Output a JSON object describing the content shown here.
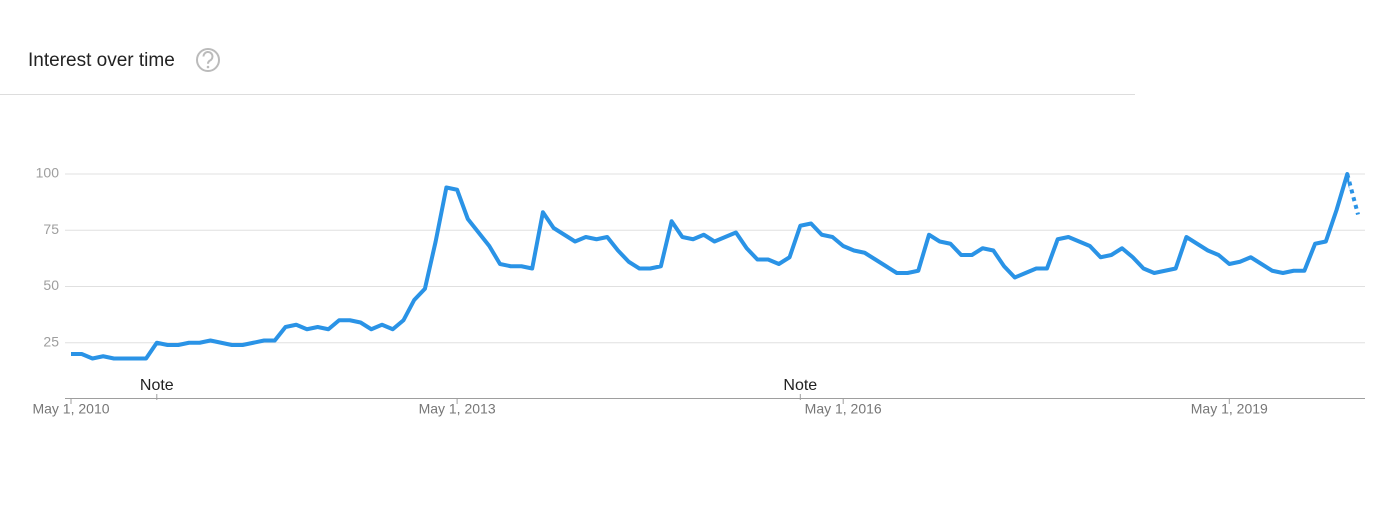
{
  "chart_data": {
    "type": "line",
    "title": "Interest over time",
    "x": [
      "2010-05-01",
      "2010-06-01",
      "2010-07-01",
      "2010-08-01",
      "2010-09-01",
      "2010-10-01",
      "2010-11-01",
      "2010-12-01",
      "2011-01-01",
      "2011-02-01",
      "2011-03-01",
      "2011-04-01",
      "2011-05-01",
      "2011-06-01",
      "2011-07-01",
      "2011-08-01",
      "2011-09-01",
      "2011-10-01",
      "2011-11-01",
      "2011-12-01",
      "2012-01-01",
      "2012-02-01",
      "2012-03-01",
      "2012-04-01",
      "2012-05-01",
      "2012-06-01",
      "2012-07-01",
      "2012-08-01",
      "2012-09-01",
      "2012-10-01",
      "2012-11-01",
      "2012-12-01",
      "2013-01-01",
      "2013-02-01",
      "2013-03-01",
      "2013-04-01",
      "2013-05-01",
      "2013-06-01",
      "2013-07-01",
      "2013-08-01",
      "2013-09-01",
      "2013-10-01",
      "2013-11-01",
      "2013-12-01",
      "2014-01-01",
      "2014-02-01",
      "2014-03-01",
      "2014-04-01",
      "2014-05-01",
      "2014-06-01",
      "2014-07-01",
      "2014-08-01",
      "2014-09-01",
      "2014-10-01",
      "2014-11-01",
      "2014-12-01",
      "2015-01-01",
      "2015-02-01",
      "2015-03-01",
      "2015-04-01",
      "2015-05-01",
      "2015-06-01",
      "2015-07-01",
      "2015-08-01",
      "2015-09-01",
      "2015-10-01",
      "2015-11-01",
      "2015-12-01",
      "2016-01-01",
      "2016-02-01",
      "2016-03-01",
      "2016-04-01",
      "2016-05-01",
      "2016-06-01",
      "2016-07-01",
      "2016-08-01",
      "2016-09-01",
      "2016-10-01",
      "2016-11-01",
      "2016-12-01",
      "2017-01-01",
      "2017-02-01",
      "2017-03-01",
      "2017-04-01",
      "2017-05-01",
      "2017-06-01",
      "2017-07-01",
      "2017-08-01",
      "2017-09-01",
      "2017-10-01",
      "2017-11-01",
      "2017-12-01",
      "2018-01-01",
      "2018-02-01",
      "2018-03-01",
      "2018-04-01",
      "2018-05-01",
      "2018-06-01",
      "2018-07-01",
      "2018-08-01",
      "2018-09-01",
      "2018-10-01",
      "2018-11-01",
      "2018-12-01",
      "2019-01-01",
      "2019-02-01",
      "2019-03-01",
      "2019-04-01",
      "2019-05-01",
      "2019-06-01",
      "2019-07-01",
      "2019-08-01",
      "2019-09-01",
      "2019-10-01",
      "2019-11-01",
      "2019-12-01",
      "2020-01-01",
      "2020-02-01",
      "2020-03-01",
      "2020-04-01",
      "2020-05-01"
    ],
    "series": [
      {
        "color": "#2a93e6",
        "values": [
          20,
          20,
          18,
          19,
          18,
          18,
          18,
          18,
          25,
          24,
          24,
          25,
          25,
          26,
          25,
          24,
          24,
          25,
          26,
          26,
          32,
          33,
          31,
          32,
          31,
          35,
          35,
          34,
          31,
          33,
          31,
          35,
          44,
          49,
          70,
          94,
          93,
          80,
          74,
          68,
          60,
          59,
          59,
          58,
          83,
          76,
          73,
          70,
          72,
          71,
          72,
          66,
          61,
          58,
          58,
          59,
          79,
          72,
          71,
          73,
          70,
          72,
          74,
          67,
          62,
          62,
          60,
          63,
          77,
          78,
          73,
          72,
          68,
          66,
          65,
          62,
          59,
          56,
          56,
          57,
          73,
          70,
          69,
          64,
          64,
          67,
          66,
          59,
          54,
          56,
          58,
          58,
          71,
          72,
          70,
          68,
          63,
          64,
          67,
          63,
          58,
          56,
          57,
          58,
          72,
          69,
          66,
          64,
          60,
          61,
          63,
          60,
          57,
          56,
          57,
          57,
          69,
          70,
          84,
          100,
          82
        ]
      }
    ],
    "partial_last_point": true,
    "xlim": [
      "2010-05-01",
      "2020-05-01"
    ],
    "xticks": [
      {
        "value": "2010-05-01",
        "label": "May 1, 2010"
      },
      {
        "value": "2013-05-01",
        "label": "May 1, 2013"
      },
      {
        "value": "2016-05-01",
        "label": "May 1, 2016"
      },
      {
        "value": "2019-05-01",
        "label": "May 1, 2019"
      }
    ],
    "ylim": [
      0,
      100
    ],
    "yticks": [
      25,
      50,
      75,
      100
    ],
    "grid": true,
    "annotations": [
      {
        "x": "2011-01-01",
        "label": "Note"
      },
      {
        "x": "2016-01-01",
        "label": "Note"
      }
    ]
  }
}
